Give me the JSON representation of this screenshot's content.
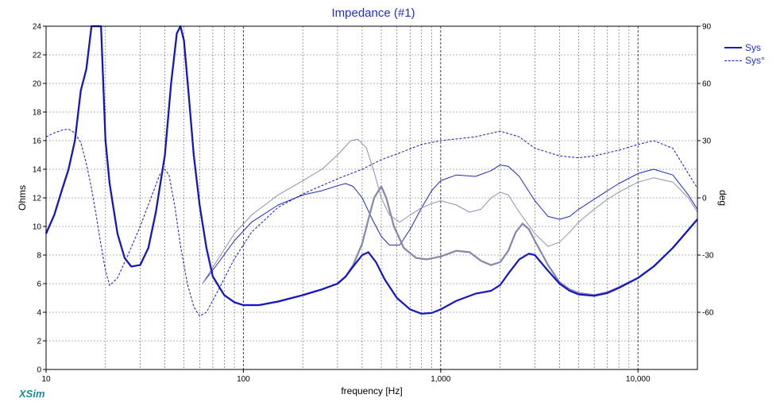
{
  "chart_data": {
    "type": "line",
    "title": "Impedance (#1)",
    "xlabel": "frequency [Hz]",
    "ylabel": "Ohms",
    "y2label": "deg",
    "x_scale": "log",
    "xlim": [
      10,
      20000
    ],
    "ylim": [
      0,
      24
    ],
    "y2lim": [
      -90,
      90
    ],
    "x_tick_labels": [
      "10",
      "100",
      "1,000",
      "10,000"
    ],
    "x_ticks": [
      10,
      100,
      1000,
      10000
    ],
    "y_ticks": [
      0,
      2,
      4,
      6,
      8,
      10,
      12,
      14,
      16,
      18,
      20,
      22,
      24
    ],
    "y2_ticks": [
      -60,
      -30,
      0,
      30,
      60,
      90
    ],
    "grid": true,
    "legend_position": "top-right",
    "legend": [
      {
        "label": "Sys",
        "style": "solid"
      },
      {
        "label": "Sys°",
        "style": "dashed"
      }
    ],
    "series": [
      {
        "name": "Sys",
        "axis": "left",
        "style": "solid",
        "color": "#1515c8",
        "points": [
          [
            10,
            9.5
          ],
          [
            11,
            10.8
          ],
          [
            12,
            12.5
          ],
          [
            13,
            14
          ],
          [
            14,
            16
          ],
          [
            15,
            19.5
          ],
          [
            16,
            21
          ],
          [
            17,
            24
          ],
          [
            19,
            24
          ],
          [
            20,
            16
          ],
          [
            21,
            13
          ],
          [
            23,
            9.5
          ],
          [
            25,
            7.8
          ],
          [
            27,
            7.2
          ],
          [
            30,
            7.3
          ],
          [
            33,
            8.5
          ],
          [
            36,
            11
          ],
          [
            40,
            15
          ],
          [
            43,
            20
          ],
          [
            46,
            23.5
          ],
          [
            48,
            24
          ],
          [
            50,
            23
          ],
          [
            53,
            19
          ],
          [
            56,
            15
          ],
          [
            60,
            11.5
          ],
          [
            65,
            8.5
          ],
          [
            70,
            6.5
          ],
          [
            80,
            5.2
          ],
          [
            90,
            4.7
          ],
          [
            100,
            4.5
          ],
          [
            120,
            4.5
          ],
          [
            150,
            4.75
          ],
          [
            200,
            5.2
          ],
          [
            250,
            5.6
          ],
          [
            300,
            6
          ],
          [
            330,
            6.5
          ],
          [
            360,
            7.2
          ],
          [
            400,
            8
          ],
          [
            430,
            8.2
          ],
          [
            470,
            7.5
          ],
          [
            520,
            6.3
          ],
          [
            600,
            5
          ],
          [
            700,
            4.2
          ],
          [
            800,
            3.9
          ],
          [
            900,
            3.95
          ],
          [
            1000,
            4.2
          ],
          [
            1200,
            4.8
          ],
          [
            1500,
            5.3
          ],
          [
            1800,
            5.5
          ],
          [
            2000,
            5.9
          ],
          [
            2200,
            6.7
          ],
          [
            2500,
            7.7
          ],
          [
            2800,
            8.1
          ],
          [
            3000,
            8
          ],
          [
            3500,
            6.9
          ],
          [
            4000,
            6
          ],
          [
            4500,
            5.5
          ],
          [
            5000,
            5.25
          ],
          [
            6000,
            5.15
          ],
          [
            7000,
            5.35
          ],
          [
            8000,
            5.7
          ],
          [
            10000,
            6.4
          ],
          [
            12000,
            7.2
          ],
          [
            15000,
            8.5
          ],
          [
            20000,
            10.5
          ]
        ]
      },
      {
        "name": "Sys°",
        "axis": "right",
        "style": "dashed",
        "color": "#1515c8",
        "points": [
          [
            10,
            32
          ],
          [
            11,
            34
          ],
          [
            12,
            35.5
          ],
          [
            13,
            36
          ],
          [
            14,
            34
          ],
          [
            15,
            29
          ],
          [
            16,
            18
          ],
          [
            17,
            5
          ],
          [
            18,
            -10
          ],
          [
            19,
            -25
          ],
          [
            20,
            -38
          ],
          [
            21,
            -46
          ],
          [
            23,
            -42
          ],
          [
            26,
            -30
          ],
          [
            30,
            -15
          ],
          [
            34,
            0
          ],
          [
            38,
            13
          ],
          [
            40,
            15
          ],
          [
            42,
            12
          ],
          [
            45,
            -5
          ],
          [
            48,
            -25
          ],
          [
            52,
            -45
          ],
          [
            56,
            -57
          ],
          [
            60,
            -62
          ],
          [
            65,
            -60
          ],
          [
            75,
            -48
          ],
          [
            90,
            -32
          ],
          [
            110,
            -18
          ],
          [
            150,
            -5
          ],
          [
            200,
            2
          ],
          [
            300,
            10
          ],
          [
            400,
            15
          ],
          [
            500,
            20
          ],
          [
            600,
            23
          ],
          [
            800,
            28
          ],
          [
            1000,
            30
          ],
          [
            1500,
            32
          ],
          [
            2000,
            35
          ],
          [
            2500,
            32
          ],
          [
            3000,
            26
          ],
          [
            4000,
            22
          ],
          [
            5000,
            21
          ],
          [
            6000,
            22
          ],
          [
            8000,
            25
          ],
          [
            10000,
            28
          ],
          [
            12000,
            30
          ],
          [
            15000,
            26
          ],
          [
            20000,
            5
          ]
        ]
      },
      {
        "name": "",
        "axis": "left",
        "style": "solid",
        "color": "#8585ad",
        "width": 2.2,
        "points": [
          [
            10,
            9.5
          ],
          [
            11,
            10.8
          ],
          [
            12,
            12.5
          ],
          [
            13,
            14
          ],
          [
            14,
            16
          ],
          [
            15,
            19.5
          ],
          [
            16,
            21
          ],
          [
            17,
            24
          ],
          [
            19,
            24
          ],
          [
            20,
            16
          ],
          [
            21,
            13
          ],
          [
            23,
            9.5
          ],
          [
            25,
            7.8
          ],
          [
            27,
            7.2
          ],
          [
            30,
            7.3
          ],
          [
            33,
            8.5
          ],
          [
            36,
            11
          ],
          [
            40,
            15
          ],
          [
            43,
            20
          ],
          [
            46,
            23.5
          ],
          [
            48,
            24
          ],
          [
            50,
            23
          ],
          [
            53,
            19
          ],
          [
            56,
            15
          ],
          [
            60,
            11.5
          ],
          [
            65,
            8.5
          ],
          [
            70,
            6.5
          ],
          [
            80,
            5.2
          ],
          [
            90,
            4.7
          ],
          [
            100,
            4.5
          ],
          [
            120,
            4.5
          ],
          [
            150,
            4.75
          ],
          [
            200,
            5.2
          ],
          [
            250,
            5.6
          ],
          [
            300,
            6
          ],
          [
            330,
            6.5
          ],
          [
            360,
            7.3
          ],
          [
            400,
            8.8
          ],
          [
            430,
            10.5
          ],
          [
            460,
            12
          ],
          [
            500,
            12.8
          ],
          [
            530,
            12
          ],
          [
            580,
            10
          ],
          [
            650,
            8.5
          ],
          [
            750,
            7.8
          ],
          [
            850,
            7.7
          ],
          [
            1000,
            7.9
          ],
          [
            1200,
            8.3
          ],
          [
            1400,
            8.2
          ],
          [
            1600,
            7.6
          ],
          [
            1800,
            7.3
          ],
          [
            2000,
            7.5
          ],
          [
            2200,
            8.3
          ],
          [
            2400,
            9.6
          ],
          [
            2600,
            10.2
          ],
          [
            2800,
            9.8
          ],
          [
            3000,
            9
          ],
          [
            3500,
            7.3
          ],
          [
            4000,
            6.1
          ],
          [
            4500,
            5.6
          ],
          [
            5000,
            5.35
          ],
          [
            6000,
            5.2
          ],
          [
            7000,
            5.4
          ],
          [
            8000,
            5.75
          ],
          [
            10000,
            6.4
          ],
          [
            12000,
            7.2
          ],
          [
            15000,
            8.5
          ],
          [
            20000,
            10.5
          ]
        ]
      },
      {
        "name": "",
        "axis": "left",
        "style": "solid",
        "color": "#1f28c0",
        "width": 1,
        "points": [
          [
            62,
            6
          ],
          [
            75,
            7.5
          ],
          [
            90,
            9
          ],
          [
            110,
            10.3
          ],
          [
            150,
            11.5
          ],
          [
            200,
            12.2
          ],
          [
            250,
            12.5
          ],
          [
            300,
            12.85
          ],
          [
            330,
            13
          ],
          [
            360,
            12.8
          ],
          [
            400,
            12
          ],
          [
            450,
            10.5
          ],
          [
            500,
            9.3
          ],
          [
            550,
            8.7
          ],
          [
            620,
            8.7
          ],
          [
            700,
            9.8
          ],
          [
            800,
            11.3
          ],
          [
            900,
            12.5
          ],
          [
            1000,
            13.2
          ],
          [
            1200,
            13.6
          ],
          [
            1500,
            13.5
          ],
          [
            1800,
            13.9
          ],
          [
            2000,
            14.3
          ],
          [
            2200,
            14.2
          ],
          [
            2500,
            13.5
          ],
          [
            3000,
            11.8
          ],
          [
            3500,
            10.7
          ],
          [
            4000,
            10.5
          ],
          [
            4500,
            10.7
          ],
          [
            5000,
            11.2
          ],
          [
            6000,
            11.9
          ],
          [
            7000,
            12.5
          ],
          [
            8000,
            13
          ],
          [
            10000,
            13.7
          ],
          [
            12000,
            14
          ],
          [
            15000,
            13.6
          ],
          [
            18000,
            12.2
          ],
          [
            20000,
            11.2
          ]
        ]
      },
      {
        "name": "",
        "axis": "left",
        "style": "solid",
        "color": "#8e8eb8",
        "width": 1,
        "points": [
          [
            62,
            6
          ],
          [
            75,
            7.8
          ],
          [
            90,
            9.5
          ],
          [
            110,
            10.8
          ],
          [
            150,
            12.2
          ],
          [
            200,
            13.2
          ],
          [
            250,
            14
          ],
          [
            300,
            15
          ],
          [
            350,
            16
          ],
          [
            380,
            16.1
          ],
          [
            420,
            15.5
          ],
          [
            460,
            13.8
          ],
          [
            500,
            12
          ],
          [
            550,
            10.8
          ],
          [
            620,
            10.3
          ],
          [
            700,
            10.8
          ],
          [
            800,
            11.3
          ],
          [
            900,
            11.6
          ],
          [
            1000,
            11.8
          ],
          [
            1200,
            11.5
          ],
          [
            1400,
            11
          ],
          [
            1600,
            11.2
          ],
          [
            1800,
            12
          ],
          [
            2000,
            12.4
          ],
          [
            2200,
            12.2
          ],
          [
            2500,
            11
          ],
          [
            3000,
            9.5
          ],
          [
            3500,
            8.6
          ],
          [
            4000,
            8.9
          ],
          [
            4500,
            9.6
          ],
          [
            5000,
            10.3
          ],
          [
            6000,
            11.2
          ],
          [
            7000,
            11.9
          ],
          [
            8000,
            12.4
          ],
          [
            10000,
            13.1
          ],
          [
            12000,
            13.4
          ],
          [
            15000,
            13.1
          ],
          [
            18000,
            12
          ],
          [
            20000,
            11
          ]
        ]
      }
    ]
  },
  "branding": {
    "label": "XSim"
  }
}
